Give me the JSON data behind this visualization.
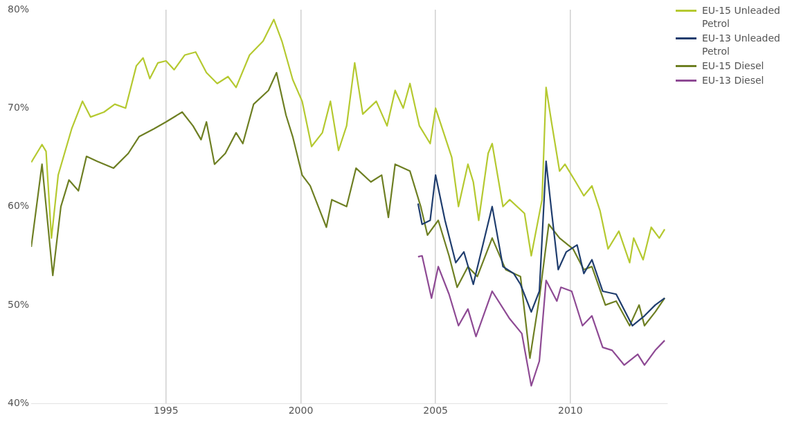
{
  "chart_data": {
    "type": "line",
    "xlim": [
      1990,
      2013.6
    ],
    "xticks": [
      1995,
      2000,
      2005,
      2010
    ],
    "ylim": [
      40,
      80
    ],
    "yticks": [
      {
        "value": 40,
        "label": "40%"
      },
      {
        "value": 50,
        "label": "50%"
      },
      {
        "value": 60,
        "label": "60%"
      },
      {
        "value": 70,
        "label": "70%"
      },
      {
        "value": 80,
        "label": "80%"
      }
    ],
    "grid": "x",
    "legend": "top right",
    "marker": "none",
    "line_style": "solid",
    "series": [
      {
        "name": "EU-15 Unleaded Petrol",
        "color": "#b5c930",
        "x": [
          1990.0,
          1990.4,
          1990.55,
          1990.75,
          1991.0,
          1991.5,
          1991.9,
          1992.2,
          1992.7,
          1993.1,
          1993.5,
          1993.9,
          1994.15,
          1994.4,
          1994.7,
          1995.0,
          1995.3,
          1995.7,
          1996.1,
          1996.5,
          1996.9,
          1997.3,
          1997.6,
          1998.1,
          1998.6,
          1999.0,
          1999.3,
          1999.7,
          2000.05,
          2000.4,
          2000.8,
          2001.1,
          2001.4,
          2001.7,
          2002.0,
          2002.3,
          2002.8,
          2003.2,
          2003.5,
          2003.8,
          2004.05,
          2004.4,
          2004.8,
          2005.0,
          2005.6,
          2005.85,
          2006.2,
          2006.4,
          2006.6,
          2006.95,
          2007.1,
          2007.5,
          2007.75,
          2008.3,
          2008.55,
          2008.95,
          2009.1,
          2009.3,
          2009.6,
          2009.8,
          2010.2,
          2010.5,
          2010.8,
          2011.1,
          2011.4,
          2011.8,
          2012.2,
          2012.35,
          2012.7,
          2013.0,
          2013.3,
          2013.5
        ],
        "values": [
          64.5,
          66.3,
          65.6,
          56.8,
          63.2,
          67.9,
          70.7,
          69.1,
          69.6,
          70.4,
          70.0,
          74.3,
          75.1,
          73.0,
          74.6,
          74.8,
          73.9,
          75.4,
          75.7,
          73.6,
          72.5,
          73.2,
          72.1,
          75.4,
          76.8,
          79.0,
          76.8,
          72.9,
          70.7,
          66.1,
          67.5,
          70.7,
          65.7,
          68.2,
          74.6,
          69.4,
          70.7,
          68.2,
          71.8,
          70.0,
          72.5,
          68.2,
          66.4,
          70.0,
          65.0,
          60.0,
          64.3,
          62.5,
          58.6,
          65.4,
          66.4,
          60.0,
          60.7,
          59.3,
          55.0,
          60.7,
          72.1,
          68.6,
          63.6,
          64.3,
          62.5,
          61.1,
          62.1,
          59.6,
          55.7,
          57.5,
          54.3,
          56.8,
          54.6,
          57.9,
          56.8,
          57.7
        ]
      },
      {
        "name": "EU-13 Unleaded Petrol",
        "color": "#1f3d6e",
        "x": [
          2004.35,
          2004.5,
          2004.8,
          2005.0,
          2005.35,
          2005.75,
          2006.05,
          2006.4,
          2007.1,
          2007.5,
          2007.9,
          2008.15,
          2008.55,
          2008.85,
          2009.1,
          2009.3,
          2009.55,
          2009.85,
          2010.25,
          2010.5,
          2010.8,
          2011.2,
          2011.7,
          2012.3,
          2012.75,
          2013.15,
          2013.5
        ],
        "values": [
          60.3,
          58.2,
          58.6,
          63.2,
          58.6,
          54.3,
          55.4,
          52.1,
          60.0,
          53.9,
          53.2,
          52.1,
          49.3,
          51.4,
          64.6,
          59.6,
          53.6,
          55.4,
          56.1,
          53.2,
          54.6,
          51.4,
          51.1,
          47.9,
          48.9,
          50.0,
          50.7
        ]
      },
      {
        "name": "EU-15 Diesel",
        "color": "#6e7f23",
        "x": [
          1990.0,
          1990.4,
          1990.8,
          1991.1,
          1991.4,
          1991.75,
          1992.05,
          1992.45,
          1993.05,
          1993.6,
          1994.0,
          1994.55,
          1995.0,
          1995.6,
          1996.0,
          1996.3,
          1996.5,
          1996.8,
          1997.2,
          1997.6,
          1997.85,
          1998.25,
          1998.8,
          1999.1,
          1999.45,
          1999.7,
          2000.05,
          2000.35,
          2000.75,
          2000.95,
          2001.15,
          2001.7,
          2002.05,
          2002.6,
          2003.0,
          2003.25,
          2003.5,
          2004.05,
          2004.45,
          2004.7,
          2005.1,
          2005.5,
          2005.8,
          2006.2,
          2006.55,
          2007.1,
          2007.6,
          2008.15,
          2008.5,
          2008.85,
          2009.2,
          2009.6,
          2010.1,
          2010.5,
          2010.8,
          2011.3,
          2011.7,
          2012.2,
          2012.55,
          2012.75,
          2013.15,
          2013.5
        ],
        "values": [
          55.9,
          64.3,
          53.0,
          60.0,
          62.7,
          61.6,
          65.1,
          64.6,
          63.9,
          65.4,
          67.1,
          67.9,
          68.6,
          69.6,
          68.2,
          66.8,
          68.6,
          64.3,
          65.4,
          67.5,
          66.4,
          70.4,
          71.8,
          73.6,
          69.3,
          67.1,
          63.2,
          62.1,
          59.3,
          57.9,
          60.7,
          60.0,
          63.9,
          62.5,
          63.2,
          58.9,
          64.3,
          63.6,
          60.0,
          57.1,
          58.6,
          55.0,
          51.8,
          53.9,
          52.9,
          56.8,
          53.6,
          52.9,
          44.6,
          50.7,
          58.2,
          56.8,
          55.7,
          53.6,
          53.9,
          50.0,
          50.4,
          47.9,
          50.0,
          47.9,
          49.3,
          50.7
        ]
      },
      {
        "name": "EU-13 Diesel",
        "color": "#8e4a94",
        "x": [
          2004.35,
          2004.5,
          2004.85,
          2005.1,
          2005.5,
          2005.85,
          2006.2,
          2006.5,
          2007.1,
          2007.75,
          2008.2,
          2008.55,
          2008.85,
          2009.1,
          2009.5,
          2009.65,
          2010.05,
          2010.45,
          2010.8,
          2011.2,
          2011.55,
          2012.0,
          2012.5,
          2012.75,
          2013.15,
          2013.5
        ],
        "values": [
          54.9,
          55.0,
          50.7,
          53.9,
          51.1,
          47.9,
          49.6,
          46.8,
          51.4,
          48.6,
          47.1,
          41.8,
          44.3,
          52.5,
          50.4,
          51.8,
          51.4,
          47.9,
          48.9,
          45.7,
          45.4,
          43.9,
          45.0,
          43.9,
          45.4,
          46.4
        ]
      }
    ]
  }
}
